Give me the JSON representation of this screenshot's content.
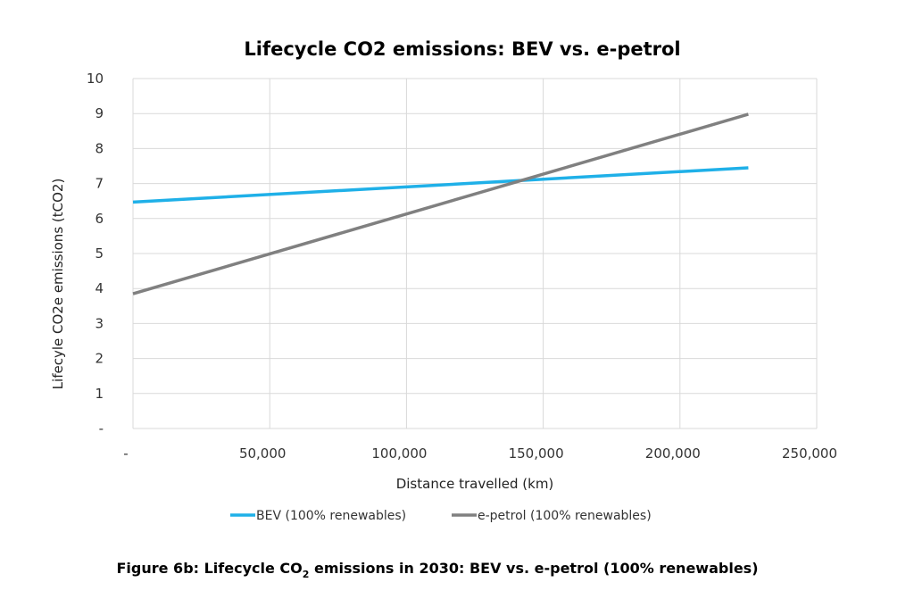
{
  "chart_data": {
    "type": "line",
    "title": "Lifecycle CO2 emissions: BEV  vs. e-petrol",
    "xlabel": "Distance travelled  (km)",
    "ylabel": "Lifecyle CO2e emissions  (tCO2)",
    "xlim": [
      0,
      250000
    ],
    "ylim": [
      0,
      10
    ],
    "grid": true,
    "legend_position": "bottom",
    "x_ticks": [
      0,
      50000,
      100000,
      150000,
      200000,
      250000
    ],
    "x_tick_labels": [
      "-",
      "50,000",
      "100,000",
      "150,000",
      "200,000",
      "250,000"
    ],
    "y_ticks": [
      0,
      1,
      2,
      3,
      4,
      5,
      6,
      7,
      8,
      9,
      10
    ],
    "y_tick_labels": [
      "-",
      "1",
      "2",
      "3",
      "4",
      "5",
      "6",
      "7",
      "8",
      "9",
      "10"
    ],
    "series": [
      {
        "name": "BEV (100% renewables)",
        "color": "#1fb0e8",
        "x": [
          0,
          225000
        ],
        "y": [
          6.47,
          7.45
        ]
      },
      {
        "name": "e-petrol (100% renewables)",
        "color": "#808080",
        "x": [
          0,
          225000
        ],
        "y": [
          3.85,
          8.98
        ]
      }
    ]
  },
  "caption": {
    "prefix": "Figure 6b: Lifecycle CO",
    "subscript": "2",
    "suffix": " emissions in 2030: BEV vs. e-petrol (100% renewables)"
  }
}
